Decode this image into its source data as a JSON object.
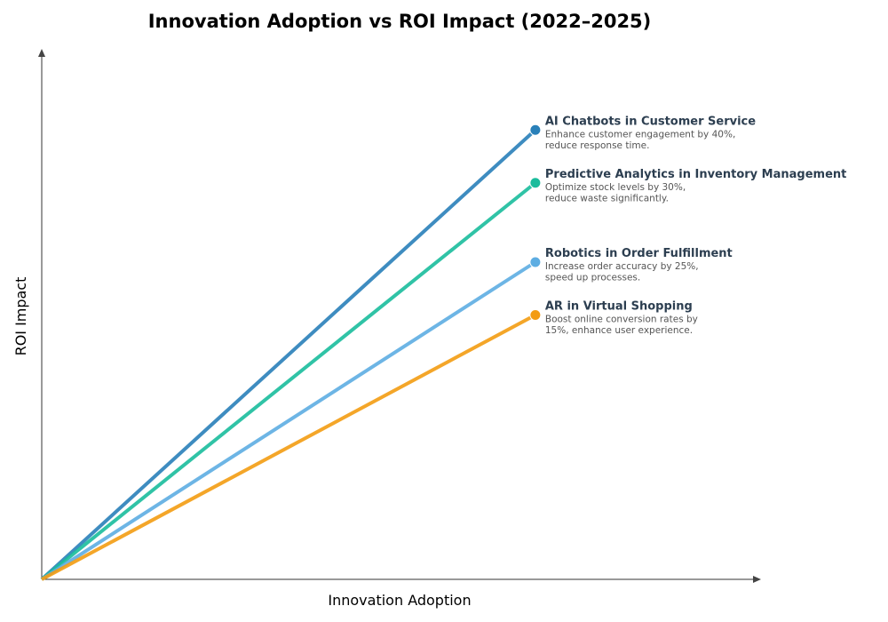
{
  "chart_data": {
    "type": "line",
    "title": "Innovation Adoption vs ROI Impact (2022–2025)",
    "xlabel": "Innovation Adoption",
    "ylabel": "ROI Impact",
    "xlim": [
      0,
      1.02
    ],
    "ylim": [
      0,
      1.0
    ],
    "grid": false,
    "series": [
      {
        "name": "AI Chatbots in Customer Service",
        "description": [
          "Enhance customer engagement by 40%,",
          "reduce response time."
        ],
        "x": [
          0,
          0.7
        ],
        "y": [
          0,
          0.85
        ],
        "color": "#2980b9"
      },
      {
        "name": "Predictive Analytics in Inventory Management",
        "description": [
          "Optimize stock levels by 30%,",
          "reduce waste significantly."
        ],
        "x": [
          0,
          0.7
        ],
        "y": [
          0,
          0.75
        ],
        "color": "#1abc9c"
      },
      {
        "name": "Robotics in Order Fulfillment",
        "description": [
          "Increase order accuracy by 25%,",
          "speed up processes."
        ],
        "x": [
          0,
          0.7
        ],
        "y": [
          0,
          0.6
        ],
        "color": "#5dade2"
      },
      {
        "name": "AR in Virtual Shopping",
        "description": [
          "Boost online conversion rates by",
          "15%, enhance user experience."
        ],
        "x": [
          0,
          0.7
        ],
        "y": [
          0,
          0.5
        ],
        "color": "#f39c12"
      }
    ]
  }
}
